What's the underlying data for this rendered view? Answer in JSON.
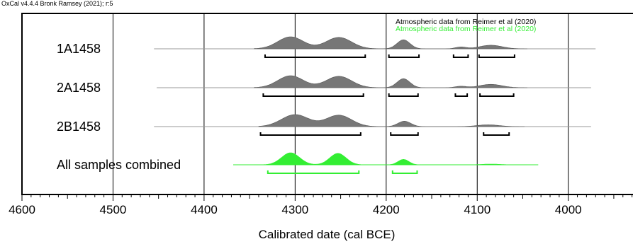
{
  "header": "OxCal v4.4.4 Bronk Ramsey (2021); r:5",
  "chart_data": {
    "type": "area",
    "xlabel": "Calibrated date (cal BCE)",
    "ylabel": "",
    "xlim": [
      4600,
      3930
    ],
    "x_ticks": [
      4600,
      4500,
      4400,
      4300,
      4200,
      4100,
      4000
    ],
    "grid": "vertical at major ticks",
    "legend": [
      {
        "text": "Atmospheric data from Reimer et al (2020)",
        "color": "#000000"
      },
      {
        "text": "Atmospheric data from Reimer et al (2020)",
        "color": "#33ee33"
      }
    ],
    "series": [
      {
        "name": "1A1458",
        "color": "#777777",
        "range": [
          4455,
          3970
        ],
        "peaks": [
          {
            "center": 4305,
            "height": 1.0,
            "width": 14
          },
          {
            "center": 4252,
            "height": 0.95,
            "width": 14
          },
          {
            "center": 4181,
            "height": 0.75,
            "width": 7
          },
          {
            "center": 4118,
            "height": 0.15,
            "width": 6
          },
          {
            "center": 4085,
            "height": 0.3,
            "width": 12
          }
        ],
        "ranges_95": [
          [
            4333,
            4223
          ],
          [
            4197,
            4164
          ],
          [
            4126,
            4110
          ],
          [
            4098,
            4059
          ]
        ]
      },
      {
        "name": "2A1458",
        "color": "#777777",
        "range": [
          4452,
          3975
        ],
        "peaks": [
          {
            "center": 4305,
            "height": 1.0,
            "width": 14
          },
          {
            "center": 4252,
            "height": 0.95,
            "width": 14
          },
          {
            "center": 4181,
            "height": 0.75,
            "width": 7
          },
          {
            "center": 4118,
            "height": 0.12,
            "width": 6
          },
          {
            "center": 4085,
            "height": 0.28,
            "width": 12
          }
        ],
        "ranges_95": [
          [
            4335,
            4225
          ],
          [
            4197,
            4165
          ],
          [
            4124,
            4111
          ],
          [
            4097,
            4060
          ]
        ]
      },
      {
        "name": "2B1458",
        "color": "#777777",
        "range": [
          4455,
          3975
        ],
        "peaks": [
          {
            "center": 4300,
            "height": 1.0,
            "width": 15
          },
          {
            "center": 4252,
            "height": 0.95,
            "width": 14
          },
          {
            "center": 4180,
            "height": 0.45,
            "width": 7
          },
          {
            "center": 4088,
            "height": 0.15,
            "width": 12
          }
        ],
        "ranges_95": [
          [
            4338,
            4228
          ],
          [
            4195,
            4165
          ],
          [
            4093,
            4065
          ]
        ]
      },
      {
        "name": "All samples combined",
        "color": "#33ee33",
        "range": [
          4368,
          4033
        ],
        "peaks": [
          {
            "center": 4305,
            "height": 1.0,
            "width": 10
          },
          {
            "center": 4253,
            "height": 0.95,
            "width": 9
          },
          {
            "center": 4181,
            "height": 0.45,
            "width": 6
          },
          {
            "center": 4085,
            "height": 0.06,
            "width": 10
          }
        ],
        "ranges_95": [
          [
            4330,
            4230
          ],
          [
            4193,
            4166
          ]
        ]
      }
    ]
  }
}
